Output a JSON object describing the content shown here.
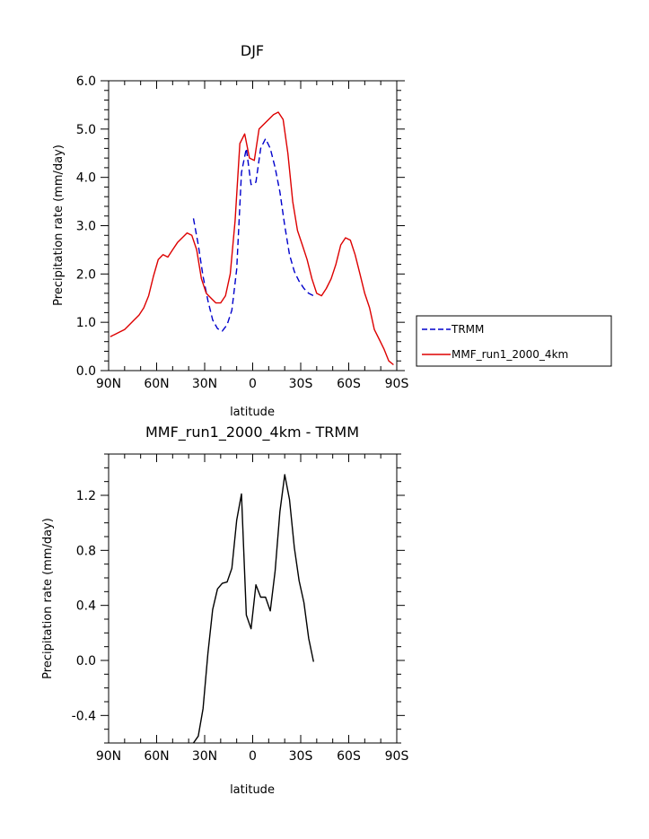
{
  "chart_data": [
    {
      "type": "line",
      "title": "DJF",
      "xlabel": "latitude",
      "ylabel": "Precipitation rate (mm/day)",
      "xlim": [
        90,
        -90
      ],
      "ylim": [
        0.0,
        6.0
      ],
      "x_ticks": [
        90,
        60,
        30,
        0,
        -30,
        -60,
        -90
      ],
      "x_tick_labels": [
        "90N",
        "60N",
        "30N",
        "0",
        "30S",
        "60S",
        "90S"
      ],
      "y_ticks": [
        0,
        1,
        2,
        3,
        4,
        5,
        6
      ],
      "y_tick_labels": [
        "0.0",
        "1.0",
        "2.0",
        "3.0",
        "4.0",
        "5.0",
        "6.0"
      ],
      "legend_position": "right",
      "series": [
        {
          "name": "TRMM",
          "color": "#0000cc",
          "style": "dashed",
          "x": [
            37,
            34,
            31,
            28,
            25,
            22,
            19,
            16,
            13,
            10,
            7,
            4,
            1,
            -2,
            -5,
            -8,
            -11,
            -14,
            -17,
            -20,
            -23,
            -26,
            -29,
            -32,
            -35,
            -38
          ],
          "y": [
            3.15,
            2.6,
            1.95,
            1.45,
            1.05,
            0.87,
            0.82,
            0.95,
            1.25,
            2.1,
            4.1,
            4.6,
            3.85,
            3.9,
            4.6,
            4.8,
            4.6,
            4.2,
            3.7,
            3.0,
            2.4,
            2.05,
            1.85,
            1.7,
            1.6,
            1.55
          ]
        },
        {
          "name": "MMF_run1_2000_4km",
          "color": "#dd0000",
          "style": "solid",
          "x": [
            89,
            86,
            83,
            80,
            77,
            74,
            71,
            68,
            65,
            62,
            59,
            56,
            53,
            50,
            47,
            44,
            41,
            38,
            35,
            32,
            29,
            26,
            23,
            20,
            17,
            14,
            11,
            8,
            5,
            2,
            -1,
            -4,
            -7,
            -10,
            -13,
            -16,
            -19,
            -22,
            -25,
            -28,
            -31,
            -34,
            -37,
            -40,
            -43,
            -46,
            -49,
            -52,
            -55,
            -58,
            -61,
            -64,
            -67,
            -70,
            -73,
            -76,
            -79,
            -82,
            -85,
            -88
          ],
          "y": [
            0.7,
            0.75,
            0.8,
            0.85,
            0.95,
            1.05,
            1.15,
            1.3,
            1.55,
            1.95,
            2.3,
            2.4,
            2.35,
            2.5,
            2.65,
            2.75,
            2.85,
            2.8,
            2.5,
            1.9,
            1.6,
            1.5,
            1.4,
            1.4,
            1.55,
            2.0,
            3.1,
            4.7,
            4.9,
            4.4,
            4.35,
            5.0,
            5.1,
            5.2,
            5.3,
            5.35,
            5.2,
            4.5,
            3.5,
            2.9,
            2.6,
            2.3,
            1.9,
            1.6,
            1.55,
            1.7,
            1.9,
            2.2,
            2.6,
            2.75,
            2.7,
            2.4,
            2.0,
            1.6,
            1.3,
            0.85,
            0.65,
            0.45,
            0.2,
            0.12
          ]
        }
      ]
    },
    {
      "type": "line",
      "title": "MMF_run1_2000_4km - TRMM",
      "xlabel": "latitude",
      "ylabel": "Precipitation rate (mm/day)",
      "xlim": [
        90,
        -90
      ],
      "ylim": [
        -0.6,
        1.5
      ],
      "x_ticks": [
        90,
        60,
        30,
        0,
        -30,
        -60,
        -90
      ],
      "x_tick_labels": [
        "90N",
        "60N",
        "30N",
        "0",
        "30S",
        "60S",
        "90S"
      ],
      "y_ticks": [
        -0.4,
        0.0,
        0.4,
        0.8,
        1.2
      ],
      "y_tick_labels": [
        "-0.4",
        "0.0",
        "0.4",
        "0.8",
        "1.2"
      ],
      "series": [
        {
          "color": "#000000",
          "style": "solid",
          "x": [
            37,
            34,
            31,
            28,
            25,
            22,
            19,
            16,
            13,
            10,
            7,
            4,
            1,
            -2,
            -5,
            -8,
            -11,
            -14,
            -17,
            -20,
            -23,
            -26,
            -29,
            -32,
            -35,
            -38
          ],
          "y": [
            -0.6,
            -0.55,
            -0.35,
            0.05,
            0.37,
            0.52,
            0.56,
            0.57,
            0.67,
            1.02,
            1.21,
            0.33,
            0.23,
            0.55,
            0.46,
            0.46,
            0.36,
            0.65,
            1.08,
            1.35,
            1.17,
            0.82,
            0.58,
            0.42,
            0.16,
            -0.01
          ]
        }
      ]
    }
  ]
}
